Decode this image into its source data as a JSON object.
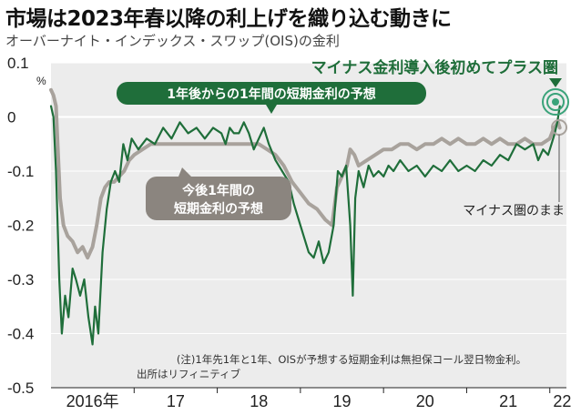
{
  "header": {
    "title": "市場は2023年春以降の利上げを織り込む動きに",
    "subtitle": "オーバーナイト・インデックス・スワップ(OIS)の金利"
  },
  "annotations": {
    "headline": "マイナス金利導入後初めてプラス圏",
    "green_label": "1年後からの1年間の短期金利の予想",
    "gray_label_line1": "今後1年間の",
    "gray_label_line2": "短期金利の予想",
    "end_label": "マイナス圏のまま",
    "note_line1": "(注)1年先1年と1年、OISが予想する短期金利は無担保コール翌日物金利。",
    "note_line2": "出所はリフィニティブ"
  },
  "colors": {
    "green": "#1f6e3a",
    "gray": "#a8a29c",
    "plot_bg": "#ececec",
    "zero_line": "#ffffff"
  },
  "chart_data": {
    "type": "line",
    "ylim": [
      -0.5,
      0.1
    ],
    "ylabel": "%",
    "yticks": [
      {
        "value": 0.1,
        "label": "0.1"
      },
      {
        "value": 0,
        "label": "0"
      },
      {
        "value": -0.1,
        "label": "-0.1"
      },
      {
        "value": -0.2,
        "label": "-0.2"
      },
      {
        "value": -0.3,
        "label": "-0.3"
      },
      {
        "value": -0.4,
        "label": "-0.4"
      },
      {
        "value": -0.5,
        "label": "-0.5"
      }
    ],
    "xlim": [
      2016.0,
      2022.2
    ],
    "xticks": [
      {
        "value": 2016.5,
        "label": "2016年"
      },
      {
        "value": 2017.5,
        "label": "17"
      },
      {
        "value": 2018.5,
        "label": "18"
      },
      {
        "value": 2019.5,
        "label": "19"
      },
      {
        "value": 2020.5,
        "label": "20"
      },
      {
        "value": 2021.5,
        "label": "21"
      },
      {
        "value": 2022.15,
        "label": "22"
      }
    ],
    "series": [
      {
        "name": "1年後からの1年間の短期金利の予想",
        "color": "#1f6e3a",
        "points": [
          [
            2016.0,
            0.02
          ],
          [
            2016.03,
            0.0
          ],
          [
            2016.06,
            -0.1
          ],
          [
            2016.1,
            -0.3
          ],
          [
            2016.13,
            -0.4
          ],
          [
            2016.17,
            -0.33
          ],
          [
            2016.21,
            -0.37
          ],
          [
            2016.26,
            -0.28
          ],
          [
            2016.3,
            -0.3
          ],
          [
            2016.35,
            -0.33
          ],
          [
            2016.4,
            -0.3
          ],
          [
            2016.45,
            -0.37
          ],
          [
            2016.5,
            -0.42
          ],
          [
            2016.53,
            -0.35
          ],
          [
            2016.57,
            -0.4
          ],
          [
            2016.62,
            -0.25
          ],
          [
            2016.67,
            -0.17
          ],
          [
            2016.72,
            -0.12
          ],
          [
            2016.77,
            -0.1
          ],
          [
            2016.82,
            -0.12
          ],
          [
            2016.87,
            -0.05
          ],
          [
            2016.92,
            -0.08
          ],
          [
            2016.97,
            -0.04
          ],
          [
            2017.05,
            -0.06
          ],
          [
            2017.15,
            -0.04
          ],
          [
            2017.25,
            -0.05
          ],
          [
            2017.35,
            -0.02
          ],
          [
            2017.45,
            -0.04
          ],
          [
            2017.55,
            -0.01
          ],
          [
            2017.65,
            -0.03
          ],
          [
            2017.75,
            -0.02
          ],
          [
            2017.85,
            -0.04
          ],
          [
            2017.95,
            -0.02
          ],
          [
            2018.05,
            -0.03
          ],
          [
            2018.1,
            -0.05
          ],
          [
            2018.15,
            -0.02
          ],
          [
            2018.2,
            -0.03
          ],
          [
            2018.26,
            -0.03
          ],
          [
            2018.32,
            -0.01
          ],
          [
            2018.38,
            -0.03
          ],
          [
            2018.44,
            -0.06
          ],
          [
            2018.5,
            -0.04
          ],
          [
            2018.56,
            -0.02
          ],
          [
            2018.62,
            -0.05
          ],
          [
            2018.7,
            -0.08
          ],
          [
            2018.78,
            -0.1
          ],
          [
            2018.86,
            -0.12
          ],
          [
            2018.92,
            -0.16
          ],
          [
            2018.98,
            -0.19
          ],
          [
            2019.04,
            -0.22
          ],
          [
            2019.1,
            -0.25
          ],
          [
            2019.16,
            -0.26
          ],
          [
            2019.22,
            -0.23
          ],
          [
            2019.28,
            -0.27
          ],
          [
            2019.34,
            -0.25
          ],
          [
            2019.4,
            -0.2
          ],
          [
            2019.45,
            -0.1
          ],
          [
            2019.5,
            -0.11
          ],
          [
            2019.55,
            -0.09
          ],
          [
            2019.6,
            -0.2
          ],
          [
            2019.63,
            -0.33
          ],
          [
            2019.66,
            -0.15
          ],
          [
            2019.7,
            -0.1
          ],
          [
            2019.76,
            -0.13
          ],
          [
            2019.82,
            -0.09
          ],
          [
            2019.88,
            -0.11
          ],
          [
            2019.94,
            -0.1
          ],
          [
            2020.0,
            -0.11
          ],
          [
            2020.06,
            -0.09
          ],
          [
            2020.12,
            -0.1
          ],
          [
            2020.2,
            -0.08
          ],
          [
            2020.3,
            -0.1
          ],
          [
            2020.4,
            -0.09
          ],
          [
            2020.5,
            -0.11
          ],
          [
            2020.6,
            -0.09
          ],
          [
            2020.7,
            -0.1
          ],
          [
            2020.8,
            -0.08
          ],
          [
            2020.9,
            -0.1
          ],
          [
            2021.0,
            -0.09
          ],
          [
            2021.1,
            -0.1
          ],
          [
            2021.2,
            -0.08
          ],
          [
            2021.3,
            -0.09
          ],
          [
            2021.4,
            -0.07
          ],
          [
            2021.5,
            -0.08
          ],
          [
            2021.6,
            -0.05
          ],
          [
            2021.7,
            -0.06
          ],
          [
            2021.8,
            -0.05
          ],
          [
            2021.86,
            -0.08
          ],
          [
            2021.92,
            -0.06
          ],
          [
            2021.98,
            -0.07
          ],
          [
            2022.02,
            -0.05
          ],
          [
            2022.06,
            -0.03
          ],
          [
            2022.09,
            -0.01
          ],
          [
            2022.11,
            0.01
          ],
          [
            2022.12,
            0.02
          ]
        ]
      },
      {
        "name": "今後1年間の短期金利の予想",
        "color": "#a8a29c",
        "points": [
          [
            2016.0,
            0.05
          ],
          [
            2016.03,
            0.04
          ],
          [
            2016.06,
            0.02
          ],
          [
            2016.08,
            -0.05
          ],
          [
            2016.11,
            -0.15
          ],
          [
            2016.15,
            -0.2
          ],
          [
            2016.2,
            -0.22
          ],
          [
            2016.26,
            -0.23
          ],
          [
            2016.32,
            -0.25
          ],
          [
            2016.38,
            -0.24
          ],
          [
            2016.44,
            -0.26
          ],
          [
            2016.5,
            -0.24
          ],
          [
            2016.55,
            -0.2
          ],
          [
            2016.6,
            -0.15
          ],
          [
            2016.65,
            -0.13
          ],
          [
            2016.7,
            -0.12
          ],
          [
            2016.76,
            -0.12
          ],
          [
            2016.82,
            -0.11
          ],
          [
            2016.88,
            -0.1
          ],
          [
            2016.94,
            -0.08
          ],
          [
            2017.0,
            -0.07
          ],
          [
            2017.1,
            -0.06
          ],
          [
            2017.2,
            -0.05
          ],
          [
            2017.3,
            -0.05
          ],
          [
            2017.4,
            -0.05
          ],
          [
            2017.5,
            -0.05
          ],
          [
            2017.6,
            -0.05
          ],
          [
            2017.7,
            -0.05
          ],
          [
            2017.8,
            -0.05
          ],
          [
            2017.9,
            -0.05
          ],
          [
            2018.0,
            -0.05
          ],
          [
            2018.1,
            -0.05
          ],
          [
            2018.2,
            -0.05
          ],
          [
            2018.3,
            -0.05
          ],
          [
            2018.4,
            -0.05
          ],
          [
            2018.5,
            -0.05
          ],
          [
            2018.6,
            -0.06
          ],
          [
            2018.7,
            -0.07
          ],
          [
            2018.8,
            -0.09
          ],
          [
            2018.9,
            -0.12
          ],
          [
            2019.0,
            -0.14
          ],
          [
            2019.1,
            -0.16
          ],
          [
            2019.2,
            -0.17
          ],
          [
            2019.3,
            -0.19
          ],
          [
            2019.38,
            -0.2
          ],
          [
            2019.44,
            -0.13
          ],
          [
            2019.5,
            -0.11
          ],
          [
            2019.56,
            -0.09
          ],
          [
            2019.6,
            -0.06
          ],
          [
            2019.65,
            -0.07
          ],
          [
            2019.7,
            -0.09
          ],
          [
            2019.8,
            -0.08
          ],
          [
            2019.9,
            -0.07
          ],
          [
            2020.0,
            -0.06
          ],
          [
            2020.1,
            -0.06
          ],
          [
            2020.2,
            -0.05
          ],
          [
            2020.3,
            -0.05
          ],
          [
            2020.4,
            -0.06
          ],
          [
            2020.5,
            -0.05
          ],
          [
            2020.6,
            -0.05
          ],
          [
            2020.7,
            -0.04
          ],
          [
            2020.8,
            -0.05
          ],
          [
            2020.9,
            -0.04
          ],
          [
            2021.0,
            -0.05
          ],
          [
            2021.1,
            -0.05
          ],
          [
            2021.2,
            -0.04
          ],
          [
            2021.3,
            -0.05
          ],
          [
            2021.4,
            -0.04
          ],
          [
            2021.5,
            -0.05
          ],
          [
            2021.6,
            -0.05
          ],
          [
            2021.7,
            -0.04
          ],
          [
            2021.8,
            -0.05
          ],
          [
            2021.9,
            -0.05
          ],
          [
            2022.0,
            -0.04
          ],
          [
            2022.05,
            -0.02
          ],
          [
            2022.1,
            -0.01
          ],
          [
            2022.12,
            -0.02
          ]
        ]
      }
    ]
  }
}
